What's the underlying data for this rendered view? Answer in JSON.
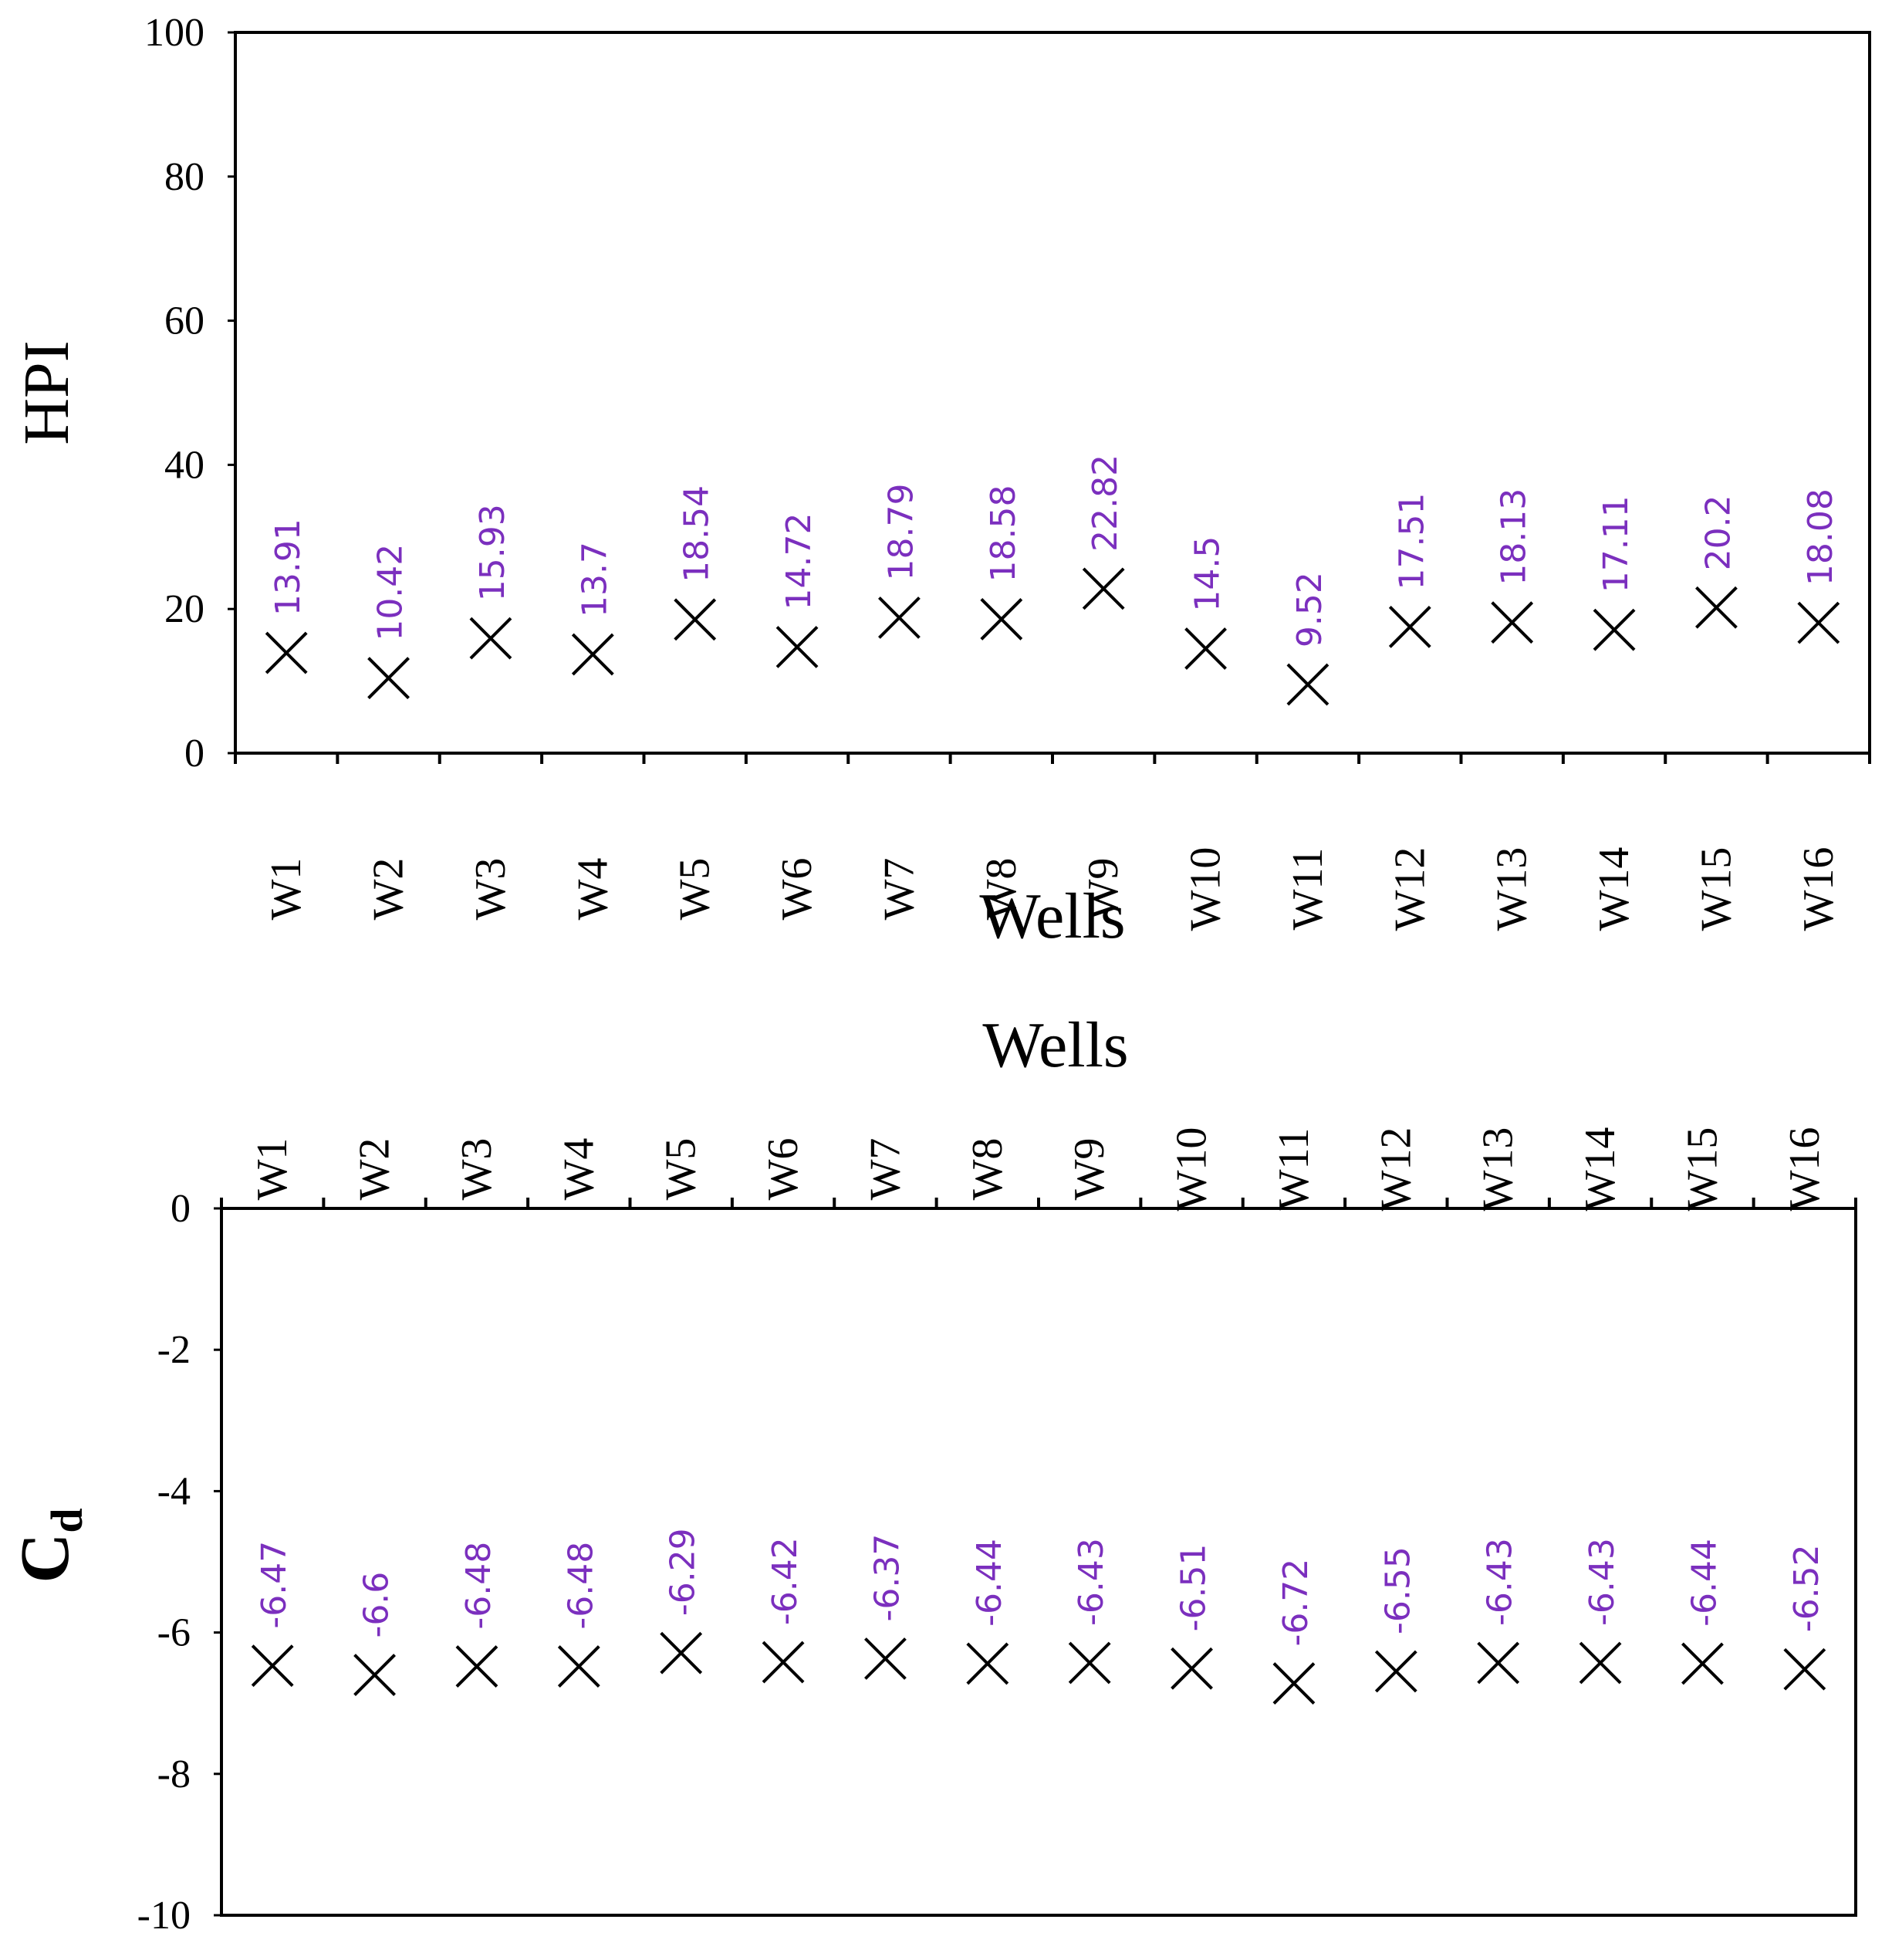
{
  "colors": {
    "label": "#7b2fbe",
    "marker": "#000000",
    "axis": "#000000"
  },
  "chart_data": [
    {
      "type": "scatter",
      "marker": "x",
      "title": "",
      "xlabel": "Wells",
      "ylabel": "HPI",
      "ylim": [
        0,
        100
      ],
      "yticks": [
        0,
        20,
        40,
        60,
        80,
        100
      ],
      "ytick_labels": [
        "0",
        "20",
        "40",
        "60",
        "80",
        "100"
      ],
      "x_axis_position": "bottom",
      "grid": false,
      "categories": [
        "W1",
        "W2",
        "W3",
        "W4",
        "W5",
        "W6",
        "W7",
        "W8",
        "W9",
        "W10",
        "W11",
        "W12",
        "W13",
        "W14",
        "W15",
        "W16"
      ],
      "values": [
        13.91,
        10.42,
        15.93,
        13.7,
        18.54,
        14.72,
        18.79,
        18.58,
        22.82,
        14.5,
        9.52,
        17.51,
        18.13,
        17.11,
        20.2,
        18.08
      ],
      "value_labels": [
        "13.91",
        "10.42",
        "15.93",
        "13.7",
        "18.54",
        "14.72",
        "18.79",
        "18.58",
        "22.82",
        "14.5",
        "9.52",
        "17.51",
        "18.13",
        "17.11",
        "20.2",
        "18.08"
      ]
    },
    {
      "type": "scatter",
      "marker": "x",
      "title": "",
      "xlabel": "Wells",
      "ylabel": "C",
      "ylabel_subscript": "d",
      "ylim": [
        -10,
        0
      ],
      "yticks": [
        0,
        -2,
        -4,
        -6,
        -8,
        -10
      ],
      "ytick_labels": [
        "0",
        "-2",
        "-4",
        "-6",
        "-8",
        "-10"
      ],
      "x_axis_position": "top",
      "grid": false,
      "categories": [
        "W1",
        "W2",
        "W3",
        "W4",
        "W5",
        "W6",
        "W7",
        "W8",
        "W9",
        "W10",
        "W11",
        "W12",
        "W13",
        "W14",
        "W15",
        "W16"
      ],
      "values": [
        -6.47,
        -6.6,
        -6.48,
        -6.48,
        -6.29,
        -6.42,
        -6.37,
        -6.44,
        -6.43,
        -6.51,
        -6.72,
        -6.55,
        -6.43,
        -6.43,
        -6.44,
        -6.52
      ],
      "value_labels": [
        "-6.47",
        "-6.6",
        "-6.48",
        "-6.48",
        "-6.29",
        "-6.42",
        "-6.37",
        "-6.44",
        "-6.43",
        "-6.51",
        "-6.72",
        "-6.55",
        "-6.43",
        "-6.43",
        "-6.44",
        "-6.52"
      ]
    }
  ]
}
